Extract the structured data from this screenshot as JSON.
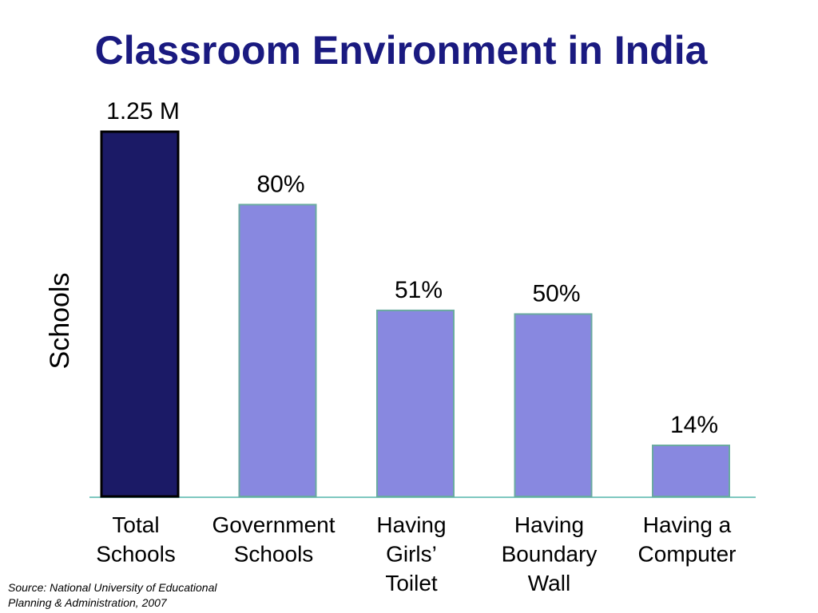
{
  "chart_data": {
    "type": "bar",
    "title": "Classroom Environment in India",
    "y_label": "Schools",
    "categories": [
      [
        "Total",
        "Schools"
      ],
      [
        "Government",
        "Schools"
      ],
      [
        "Having",
        "Girls’",
        "Toilet"
      ],
      [
        "Having",
        "Boundary",
        "Wall"
      ],
      [
        "Having a",
        "Computer"
      ]
    ],
    "values": [
      1250000,
      1000000,
      637500,
      625000,
      175000
    ],
    "value_labels": [
      "1.25 M",
      "80%",
      "51%",
      "50%",
      "14%"
    ],
    "colors": [
      "#1b1a66",
      "#8888e0",
      "#8888e0",
      "#8888e0",
      "#8888e0"
    ],
    "ylim": [
      0,
      1250000
    ],
    "source": [
      "Source: National University of Educational",
      "Planning & Administration, 2007"
    ]
  }
}
